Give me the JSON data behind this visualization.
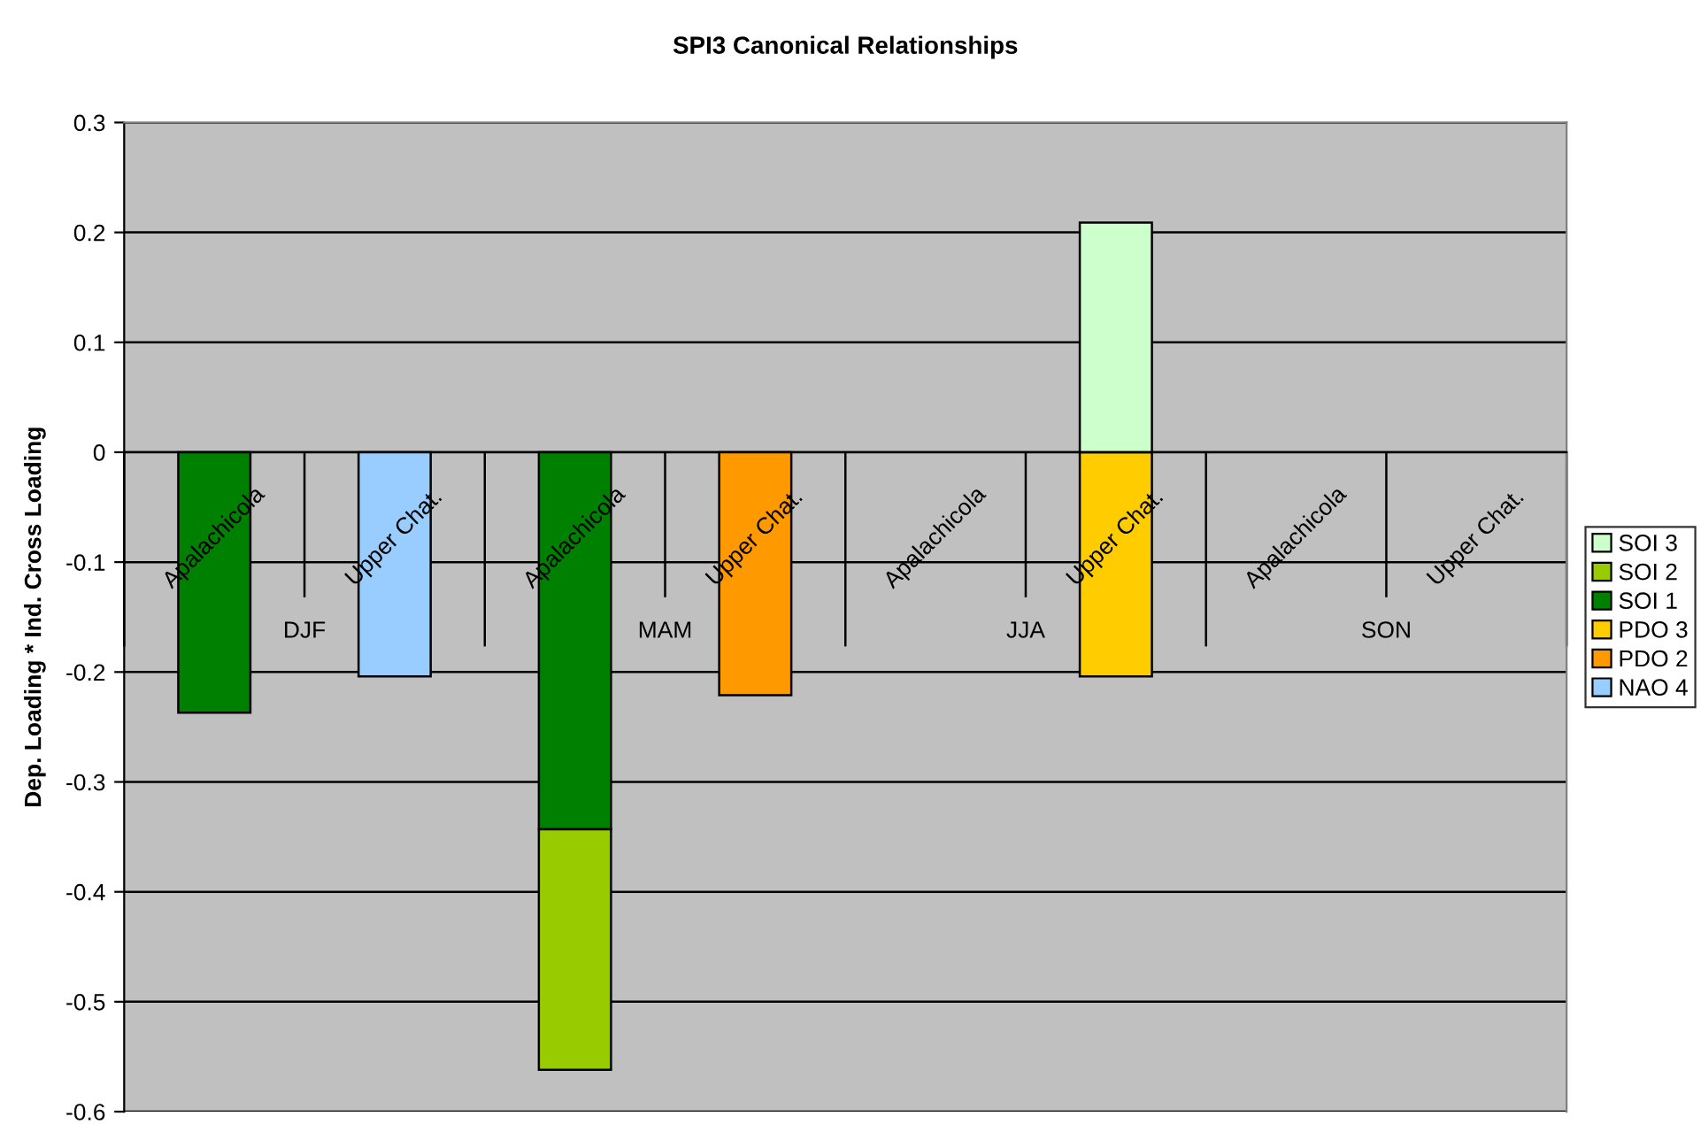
{
  "chart_data": {
    "type": "bar",
    "title": "SPI3 Canonical Relationships",
    "ylabel": "Dep. Loading * Ind. Cross Loading",
    "categories": [
      "Apalachicola",
      "Upper Chat.",
      "Apalachicola",
      "Upper Chat.",
      "Apalachicola",
      "Upper Chat.",
      "Apalachicola",
      "Upper Chat."
    ],
    "annotations": [
      "DJF",
      "MAM",
      "JJA",
      "SON"
    ],
    "stacked": true,
    "series": [
      {
        "name": "NAO 4",
        "color": "#99ccff",
        "values": [
          null,
          -0.204,
          null,
          null,
          null,
          null,
          null,
          null
        ]
      },
      {
        "name": "PDO 2",
        "color": "#ff9900",
        "values": [
          null,
          null,
          null,
          -0.221,
          null,
          null,
          null,
          null
        ]
      },
      {
        "name": "PDO 3",
        "color": "#ffcc00",
        "values": [
          null,
          null,
          null,
          null,
          null,
          -0.204,
          null,
          null
        ]
      },
      {
        "name": "SOI 1",
        "color": "#008000",
        "values": [
          -0.237,
          null,
          -0.343,
          null,
          null,
          null,
          null,
          null
        ]
      },
      {
        "name": "SOI 2",
        "color": "#99cc00",
        "values": [
          null,
          null,
          -0.219,
          null,
          null,
          null,
          null,
          null
        ]
      },
      {
        "name": "SOI 3",
        "color": "#ccffcc",
        "values": [
          null,
          null,
          null,
          null,
          null,
          0.209,
          null,
          null
        ]
      }
    ],
    "ylim": [
      -0.6,
      0.3
    ],
    "yticks": [
      -0.6,
      -0.5,
      -0.4,
      -0.3,
      -0.2,
      -0.1,
      0,
      0.1,
      0.2,
      0.3
    ],
    "grid": "y",
    "legend": "right"
  }
}
